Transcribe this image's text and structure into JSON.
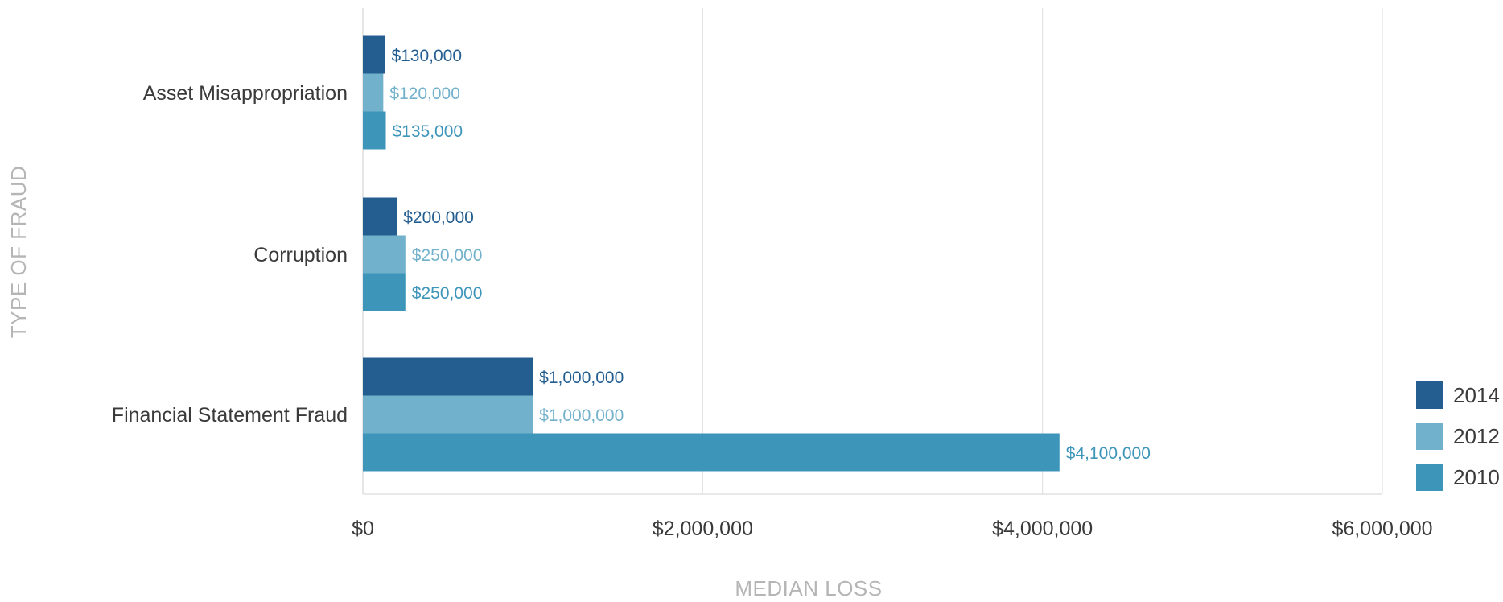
{
  "chart_data": {
    "type": "bar",
    "orientation": "horizontal",
    "title": "",
    "xlabel": "MEDIAN LOSS",
    "ylabel": "TYPE OF FRAUD",
    "categories": [
      "Asset Misappropriation",
      "Corruption",
      "Financial Statement Fraud"
    ],
    "series": [
      {
        "name": "2014",
        "color": "#245e91",
        "values": [
          130000,
          200000,
          1000000
        ],
        "labels": [
          "$130,000",
          "$200,000",
          "$1,000,000"
        ]
      },
      {
        "name": "2012",
        "color": "#72b1cb",
        "values": [
          120000,
          250000,
          1000000
        ],
        "labels": [
          "$120,000",
          "$250,000",
          "$1,000,000"
        ]
      },
      {
        "name": "2010",
        "color": "#3e95ba",
        "values": [
          135000,
          250000,
          4100000
        ],
        "labels": [
          "$135,000",
          "$250,000",
          "$4,100,000"
        ]
      }
    ],
    "xlim": [
      0,
      6000000
    ],
    "xticks": [
      0,
      2000000,
      4000000,
      6000000
    ],
    "xtick_labels": [
      "$0",
      "$2,000,000",
      "$4,000,000",
      "$6,000,000"
    ],
    "grid": true,
    "legend": {
      "position": "bottom-right",
      "entries": [
        "2014",
        "2012",
        "2010"
      ]
    }
  }
}
